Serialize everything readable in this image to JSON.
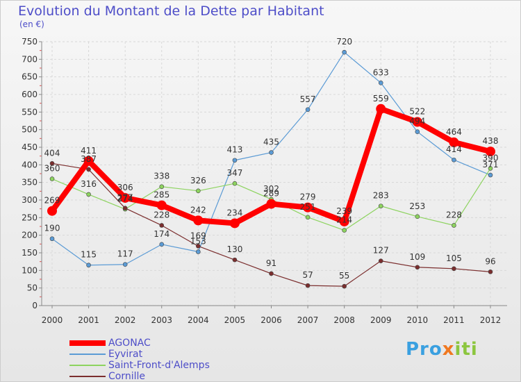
{
  "title": "Evolution du Montant de la Dette par Habitant",
  "unit": "(en €)",
  "logo": {
    "parts": [
      "Pro",
      "x",
      "iti"
    ],
    "colors": [
      "#3aa0e0",
      "#f07820",
      "#8cc63f"
    ]
  },
  "chart_data": {
    "type": "line",
    "x": [
      "2000",
      "2001",
      "2002",
      "2003",
      "2004",
      "2005",
      "2006",
      "2007",
      "2008",
      "2009",
      "2010",
      "2011",
      "2012"
    ],
    "ylim": [
      0,
      750
    ],
    "yticks": [
      0,
      50,
      100,
      150,
      200,
      250,
      300,
      350,
      400,
      450,
      500,
      550,
      600,
      650,
      700,
      750
    ],
    "grid": true,
    "legend_position": "bottom-left",
    "series": [
      {
        "name": "Eyvirat",
        "color": "#5b9bd5",
        "values": [
          190,
          115,
          117,
          174,
          153,
          413,
          435,
          557,
          720,
          633,
          494,
          414,
          371
        ]
      },
      {
        "name": "Saint-Front-d'Alemps",
        "color": "#8dd35f",
        "values": [
          360,
          316,
          274,
          338,
          326,
          347,
          302,
          251,
          214,
          283,
          253,
          228,
          390
        ]
      },
      {
        "name": "Cornille",
        "color": "#7b2e2e",
        "values": [
          404,
          387,
          277,
          228,
          169,
          130,
          91,
          57,
          55,
          127,
          109,
          105,
          96
        ]
      },
      {
        "name": "AGONAC",
        "color": "#ff0000",
        "values": [
          269,
          411,
          306,
          285,
          242,
          234,
          289,
          279,
          239,
          559,
          522,
          464,
          438
        ]
      }
    ],
    "legend_order": [
      "AGONAC",
      "Eyvirat",
      "Saint-Front-d'Alemps",
      "Cornille"
    ]
  }
}
